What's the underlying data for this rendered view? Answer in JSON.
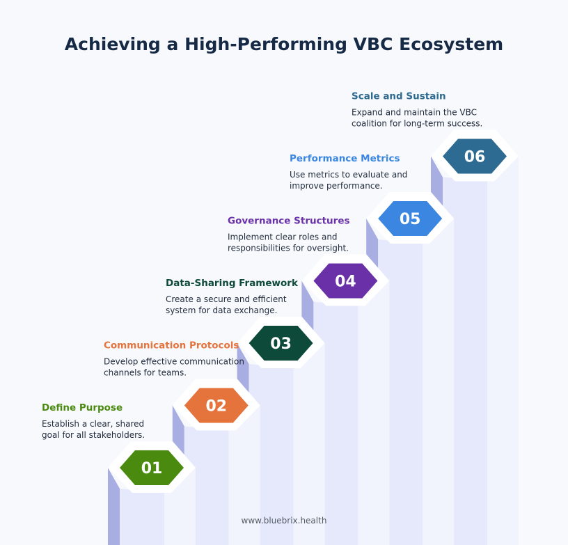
{
  "title": "Achieving a High-Performing VBC Ecosystem",
  "steps": [
    {
      "number": "01",
      "title": "Define Purpose",
      "color": "#4a8a0e",
      "description": [
        "Establish a clear, shared",
        "goal for all stakeholders."
      ]
    },
    {
      "number": "02",
      "title": "Communication Protocols",
      "color": "#e4733c",
      "description": [
        "Develop effective communication",
        "channels for teams."
      ]
    },
    {
      "number": "03",
      "title": "Data-Sharing Framework",
      "color": "#0d4a3a",
      "description": [
        "Create a secure and efficient",
        "system for data exchange."
      ]
    },
    {
      "number": "04",
      "title": "Governance Structures",
      "color": "#6a30a8",
      "description": [
        "Implement clear roles and",
        "responsibilities for oversight."
      ]
    },
    {
      "number": "05",
      "title": "Performance Metrics",
      "color": "#3a86e0",
      "description": [
        "Use metrics to evaluate and",
        "improve performance."
      ]
    },
    {
      "number": "06",
      "title": "Scale and Sustain",
      "color": "#2e6b92",
      "description": [
        "Expand and maintain the VBC",
        "coalition for long-term success."
      ]
    }
  ],
  "footer": "www.bluebrix.health"
}
